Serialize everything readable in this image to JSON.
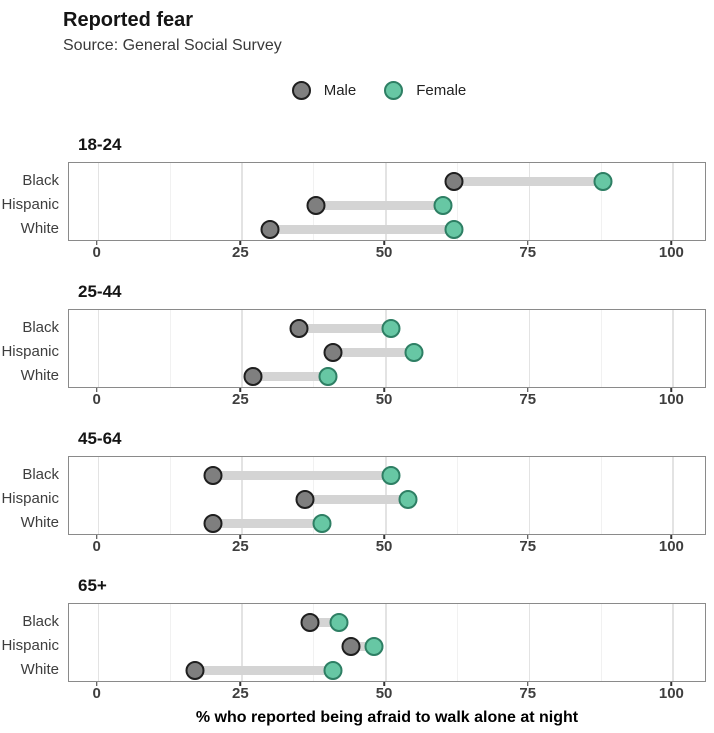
{
  "header": {
    "title": "Reported fear",
    "subtitle": "Source: General Social Survey"
  },
  "legend": [
    {
      "label": "Male",
      "fill": "#7f7f7f",
      "stroke": "#1f1f1f"
    },
    {
      "label": "Female",
      "fill": "#67c7a4",
      "stroke": "#2e7f64"
    }
  ],
  "chart_data": {
    "type": "dumbbell",
    "title": "Reported fear",
    "subtitle": "Source: General Social Survey",
    "xlabel": "% who reported being afraid to walk alone at night",
    "xlim": [
      -5,
      105.5
    ],
    "x_ticks": [
      0,
      25,
      50,
      75,
      100
    ],
    "minor_ticks": [
      12.5,
      37.5,
      62.5,
      87.5
    ],
    "grid": "on",
    "legend_position": "top-center",
    "categories": [
      "Black",
      "Hispanic",
      "White"
    ],
    "series_names": [
      "Male",
      "Female"
    ],
    "groups": [
      {
        "label": "18-24",
        "rows": [
          {
            "category": "Black",
            "male": 62,
            "female": 88
          },
          {
            "category": "Hispanic",
            "male": 38,
            "female": 60
          },
          {
            "category": "White",
            "male": 30,
            "female": 62
          }
        ]
      },
      {
        "label": "25-44",
        "rows": [
          {
            "category": "Black",
            "male": 35,
            "female": 51
          },
          {
            "category": "Hispanic",
            "male": 41,
            "female": 55
          },
          {
            "category": "White",
            "male": 27,
            "female": 40
          }
        ]
      },
      {
        "label": "45-64",
        "rows": [
          {
            "category": "Black",
            "male": 20,
            "female": 51
          },
          {
            "category": "Hispanic",
            "male": 36,
            "female": 54
          },
          {
            "category": "White",
            "male": 20,
            "female": 39
          }
        ]
      },
      {
        "label": "65+",
        "rows": [
          {
            "category": "Black",
            "male": 37,
            "female": 42
          },
          {
            "category": "Hispanic",
            "male": 44,
            "female": 48
          },
          {
            "category": "White",
            "male": 17,
            "female": 41
          }
        ]
      }
    ]
  }
}
